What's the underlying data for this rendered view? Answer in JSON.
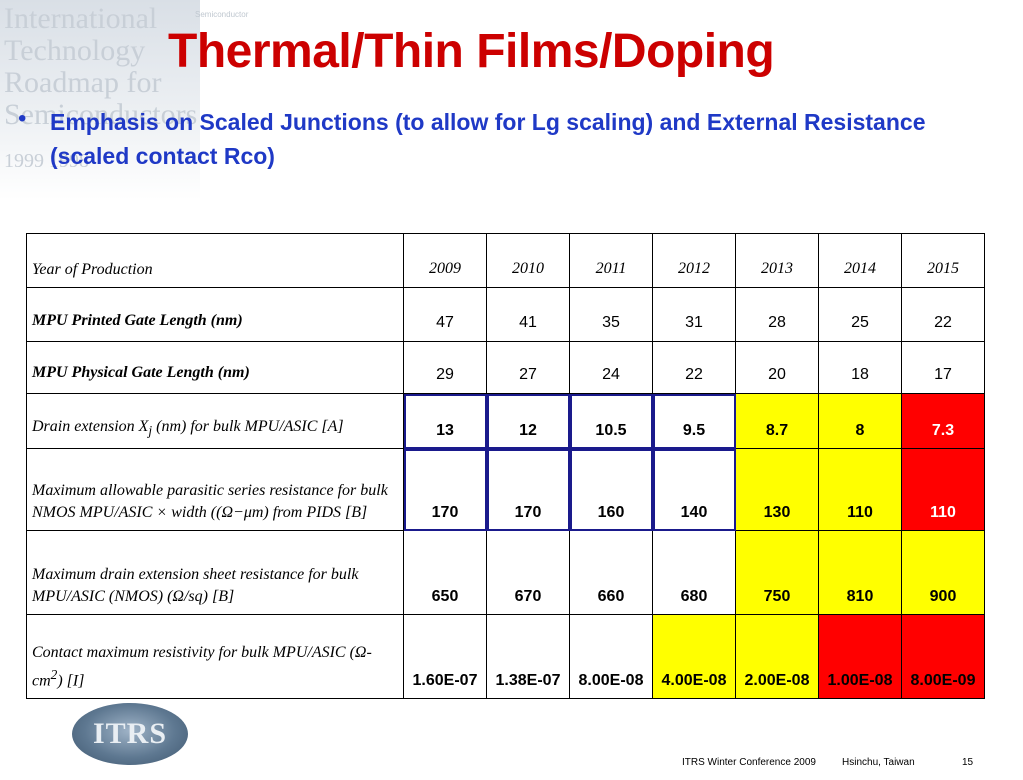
{
  "watermark": {
    "lines": [
      "International",
      "Technology",
      "Roadmap for",
      "Semiconductors",
      "1999 1998"
    ],
    "small": "Semiconductor"
  },
  "title": "Thermal/Thin Films/Doping",
  "bullet": {
    "symbol": "•",
    "text": "Emphasis on Scaled Junctions (to allow for Lg scaling) and External Resistance (scaled contact Rco)"
  },
  "table": {
    "header": {
      "label": "Year of Production",
      "years": [
        "2009",
        "2010",
        "2011",
        "2012",
        "2013",
        "2014",
        "2015"
      ]
    },
    "rows": [
      {
        "label": "MPU Printed Gate Length (nm)",
        "values": [
          "47",
          "41",
          "35",
          "31",
          "28",
          "25",
          "22"
        ]
      },
      {
        "label": "MPU Physical Gate Length (nm)",
        "values": [
          "29",
          "27",
          "24",
          "22",
          "20",
          "18",
          "17"
        ]
      },
      {
        "label_pre": "Drain extension X",
        "label_sub": "j",
        "label_post": " (nm) for bulk MPU/ASIC [A]",
        "values": [
          "13",
          "12",
          "10.5",
          "9.5",
          "8.7",
          "8",
          "7.3"
        ]
      },
      {
        "label": "Maximum allowable parasitic series resistance for bulk NMOS MPU/ASIC × width ((Ω−μm) from PIDS [B]",
        "values": [
          "170",
          "170",
          "160",
          "140",
          "130",
          "110",
          "110"
        ]
      },
      {
        "label": "Maximum drain extension sheet resistance for bulk MPU/ASIC (NMOS) (Ω/sq) [B]",
        "values": [
          "650",
          "670",
          "660",
          "680",
          "750",
          "810",
          "900"
        ]
      },
      {
        "label_pre": "Contact maximum resistivity for bulk MPU/ASIC (Ω-cm",
        "label_sup": "2",
        "label_post": ") [I]",
        "values": [
          "1.60E-07",
          "1.38E-07",
          "8.00E-08",
          "4.00E-08",
          "2.00E-08",
          "1.00E-08",
          "8.00E-09"
        ]
      }
    ]
  },
  "colors": {
    "title": "#cc0000",
    "bullet": "#1f39c6",
    "yellow": "#ffff00",
    "red": "#ff0000",
    "highlight_border": "#1a1a8c"
  },
  "logo": {
    "text": "ITRS"
  },
  "footer": {
    "conference": "ITRS Winter Conference 2009",
    "location": "Hsinchu, Taiwan",
    "page": "15"
  }
}
